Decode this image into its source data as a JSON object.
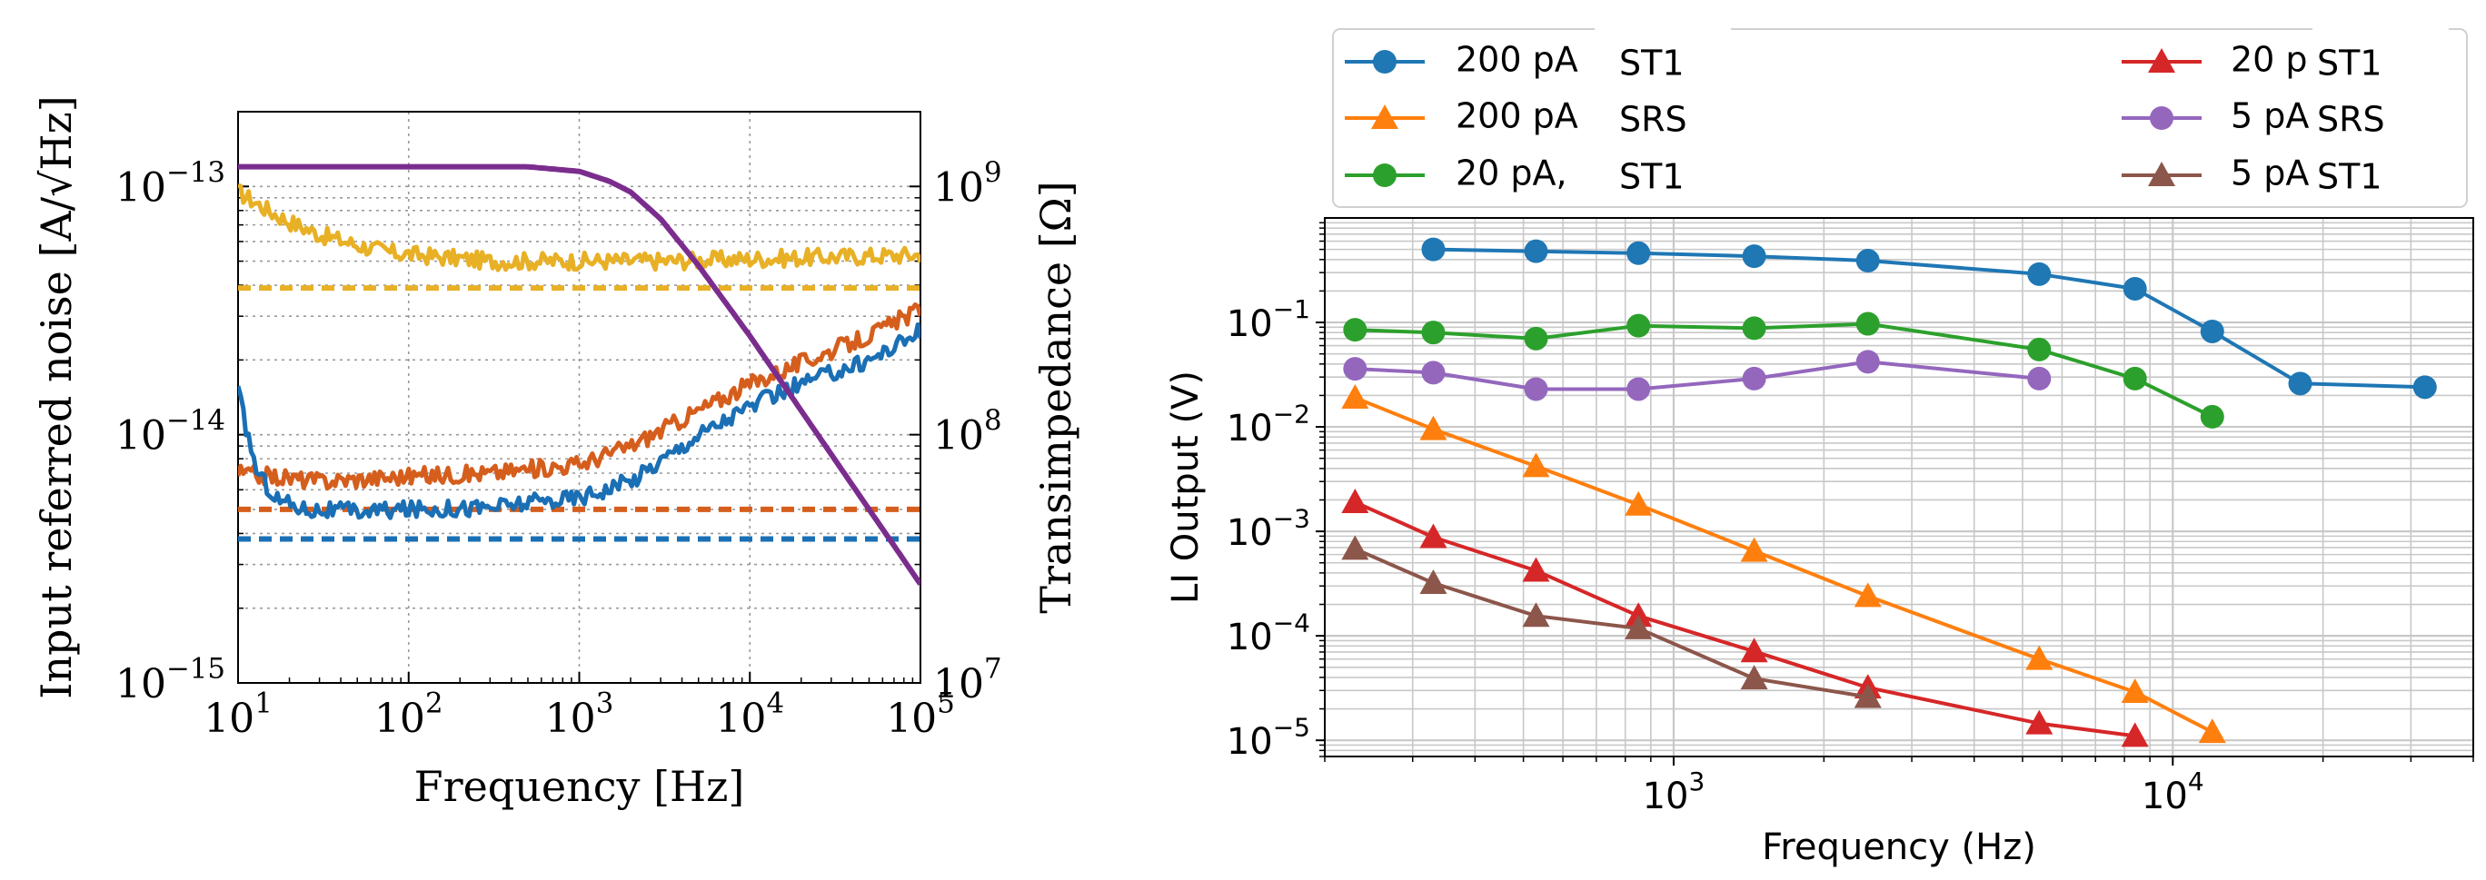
{
  "chart_data": [
    {
      "type": "line",
      "xlabel": "Frequency [Hz]",
      "ylabel": "Input referred noise [A/√Hz]",
      "y2label": "Transimpedance [Ω]",
      "xscale": "log",
      "yscale": "log",
      "xlim": [
        10,
        100000
      ],
      "ylim": [
        1e-15,
        2e-13
      ],
      "y2lim": [
        10000000.0,
        2000000000.0
      ],
      "xticks": [
        {
          "v": 10,
          "b": "10",
          "e": "1"
        },
        {
          "v": 100,
          "b": "10",
          "e": "2"
        },
        {
          "v": 1000,
          "b": "10",
          "e": "3"
        },
        {
          "v": 10000,
          "b": "10",
          "e": "4"
        },
        {
          "v": 100000,
          "b": "10",
          "e": "5"
        }
      ],
      "yticks": [
        {
          "v": 1e-15,
          "b": "10",
          "e": "−15"
        },
        {
          "v": 1e-14,
          "b": "10",
          "e": "−14"
        },
        {
          "v": 1e-13,
          "b": "10",
          "e": "−13"
        }
      ],
      "y2ticks": [
        {
          "v": 10000000.0,
          "b": "10",
          "e": "7"
        },
        {
          "v": 100000000.0,
          "b": "10",
          "e": "8"
        },
        {
          "v": 1000000000.0,
          "b": "10",
          "e": "9"
        }
      ],
      "grid": true,
      "colors": {
        "blue": "#1a6fb5",
        "orange": "#d55e1d",
        "yellow": "#e8b025",
        "purple": "#7b2d8e"
      },
      "series": [
        {
          "name": "yellow-noise",
          "axis": "left",
          "color": "#e8b025",
          "style": "noisy",
          "points": [
            [
              10,
              9.5e-14
            ],
            [
              12,
              8.8e-14
            ],
            [
              15,
              8e-14
            ],
            [
              20,
              7.2e-14
            ],
            [
              30,
              6.4e-14
            ],
            [
              50,
              5.8e-14
            ],
            [
              80,
              5.4e-14
            ],
            [
              150,
              5.2e-14
            ],
            [
              300,
              5e-14
            ],
            [
              1000,
              5e-14
            ],
            [
              3000,
              5e-14
            ],
            [
              10000,
              5.1e-14
            ],
            [
              30000,
              5.2e-14
            ],
            [
              100000,
              5.3e-14
            ]
          ]
        },
        {
          "name": "yellow-floor",
          "axis": "left",
          "color": "#e8b025",
          "style": "dashed",
          "points": [
            [
              10,
              3.9e-14
            ],
            [
              100000,
              3.9e-14
            ]
          ]
        },
        {
          "name": "orange-noise",
          "axis": "left",
          "color": "#d55e1d",
          "style": "noisy",
          "points": [
            [
              10,
              7e-15
            ],
            [
              30,
              6.5e-15
            ],
            [
              100,
              6.8e-15
            ],
            [
              300,
              7e-15
            ],
            [
              1000,
              7.6e-15
            ],
            [
              2000,
              9e-15
            ],
            [
              5000,
              1.25e-14
            ],
            [
              10000,
              1.6e-14
            ],
            [
              20000,
              1.95e-14
            ],
            [
              50000,
              2.5e-14
            ],
            [
              100000,
              3.2e-14
            ]
          ]
        },
        {
          "name": "orange-floor",
          "axis": "left",
          "color": "#d55e1d",
          "style": "dashed",
          "points": [
            [
              10,
              5e-15
            ],
            [
              100000,
              5e-15
            ]
          ]
        },
        {
          "name": "blue-noise",
          "axis": "left",
          "color": "#1a6fb5",
          "style": "noisy",
          "points": [
            [
              10,
              1.5e-14
            ],
            [
              11,
              1.1e-14
            ],
            [
              13,
              7e-15
            ],
            [
              17,
              5.5e-15
            ],
            [
              25,
              5e-15
            ],
            [
              50,
              4.9e-15
            ],
            [
              100,
              5e-15
            ],
            [
              300,
              5.1e-15
            ],
            [
              1000,
              5.6e-15
            ],
            [
              2000,
              6.5e-15
            ],
            [
              5000,
              1e-14
            ],
            [
              10000,
              1.3e-14
            ],
            [
              20000,
              1.6e-14
            ],
            [
              50000,
              2e-14
            ],
            [
              100000,
              2.6e-14
            ]
          ]
        },
        {
          "name": "blue-floor",
          "axis": "left",
          "color": "#1a6fb5",
          "style": "dashed",
          "points": [
            [
              10,
              3.8e-15
            ],
            [
              100000,
              3.8e-15
            ]
          ]
        },
        {
          "name": "transimpedance",
          "axis": "right",
          "color": "#7b2d8e",
          "style": "smooth",
          "points": [
            [
              10,
              1200000000.0
            ],
            [
              100,
              1200000000.0
            ],
            [
              500,
              1200000000.0
            ],
            [
              1000,
              1150000000.0
            ],
            [
              1500,
              1050000000.0
            ],
            [
              2000,
              950000000.0
            ],
            [
              3000,
              740000000.0
            ],
            [
              5000,
              480000000.0
            ],
            [
              10000,
              250000000.0
            ],
            [
              20000,
              125000000.0
            ],
            [
              50000,
              50000000.0
            ],
            [
              100000,
              25000000.0
            ]
          ]
        }
      ]
    },
    {
      "type": "line",
      "xlabel": "Frequency (Hz)",
      "ylabel": "LI Output (V)",
      "xscale": "log",
      "yscale": "log",
      "xlim": [
        200,
        40000
      ],
      "ylim": [
        7e-06,
        1
      ],
      "xticks": [
        {
          "v": 1000,
          "b": "10",
          "e": "3"
        },
        {
          "v": 10000,
          "b": "10",
          "e": "4"
        }
      ],
      "yticks": [
        {
          "v": 1e-05,
          "b": "10",
          "e": "−5"
        },
        {
          "v": 0.0001,
          "b": "10",
          "e": "−4"
        },
        {
          "v": 0.001,
          "b": "10",
          "e": "−3"
        },
        {
          "v": 0.01,
          "b": "10",
          "e": "−2"
        },
        {
          "v": 0.1,
          "b": "10",
          "e": "−1"
        }
      ],
      "grid": true,
      "legend_placement": "top",
      "series": [
        {
          "name": "200 pA, ST1",
          "label_a": "200 pA",
          "label_b": "ST1",
          "color": "#1f77b4",
          "marker": "circle",
          "x": [
            330,
            530,
            850,
            1450,
            2450,
            5400,
            8400,
            12000,
            18000,
            32000
          ],
          "y": [
            0.5,
            0.48,
            0.46,
            0.43,
            0.39,
            0.29,
            0.21,
            0.082,
            0.026,
            0.024
          ]
        },
        {
          "name": "200 pA, SRS",
          "label_a": "200 pA",
          "label_b": "SRS",
          "color": "#ff7f0e",
          "marker": "triangle",
          "x": [
            230,
            330,
            530,
            850,
            1450,
            2450,
            5400,
            8400,
            12000
          ],
          "y": [
            0.019,
            0.0095,
            0.0042,
            0.0018,
            0.00065,
            0.00024,
            6e-05,
            2.9e-05,
            1.2e-05
          ]
        },
        {
          "name": "20 pA, ST1",
          "label_a": "20 pA,",
          "label_b": "ST1",
          "color": "#2ca02c",
          "marker": "circle",
          "x": [
            230,
            330,
            530,
            850,
            1450,
            2450,
            5400,
            8400,
            12000
          ],
          "y": [
            0.085,
            0.08,
            0.07,
            0.093,
            0.088,
            0.097,
            0.055,
            0.029,
            0.0125
          ]
        },
        {
          "name": "20 pA, ST1 (red)",
          "label_a": "20 p",
          "label_b": "ST1",
          "color": "#d62728",
          "marker": "triangle",
          "x": [
            230,
            330,
            530,
            850,
            1450,
            2450,
            5400,
            8400
          ],
          "y": [
            0.0019,
            0.00088,
            0.00042,
            0.000155,
            7.1e-05,
            3.2e-05,
            1.45e-05,
            1.1e-05
          ]
        },
        {
          "name": "5 pA, SRS",
          "label_a": "5 pA",
          "label_b": "SRS",
          "color": "#9467bd",
          "marker": "circle",
          "x": [
            230,
            330,
            530,
            850,
            1450,
            2450,
            5400
          ],
          "y": [
            0.036,
            0.033,
            0.023,
            0.023,
            0.029,
            0.042,
            0.029
          ]
        },
        {
          "name": "5 pA, ST1",
          "label_a": "5 pA",
          "label_b": "ST1",
          "color": "#8c564b",
          "marker": "triangle",
          "x": [
            230,
            330,
            530,
            850,
            1450,
            2450
          ],
          "y": [
            0.00068,
            0.00032,
            0.000155,
            0.000118,
            3.9e-05,
            2.6e-05
          ]
        }
      ]
    }
  ]
}
